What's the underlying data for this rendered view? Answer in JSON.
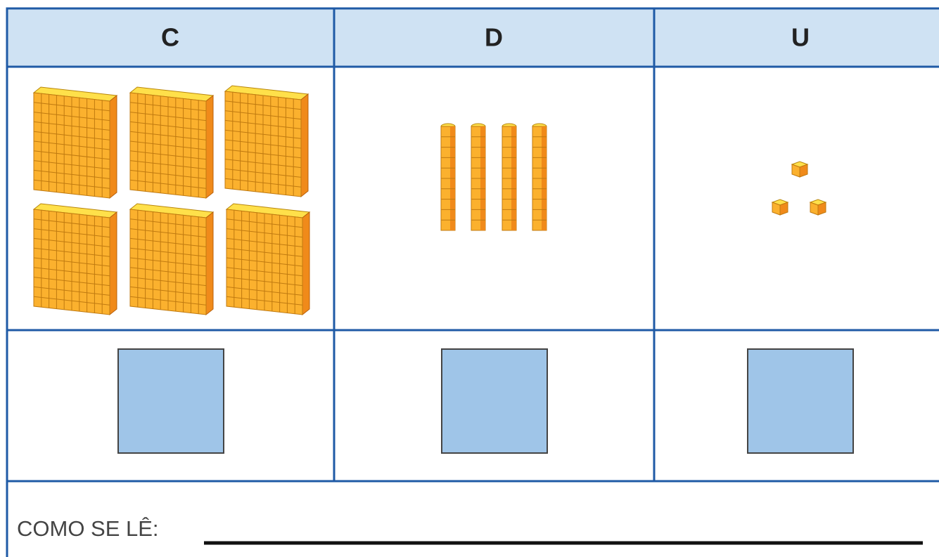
{
  "table": {
    "headers": [
      "C",
      "D",
      "U"
    ]
  },
  "footer": {
    "label": "COMO SE LÊ:"
  }
}
